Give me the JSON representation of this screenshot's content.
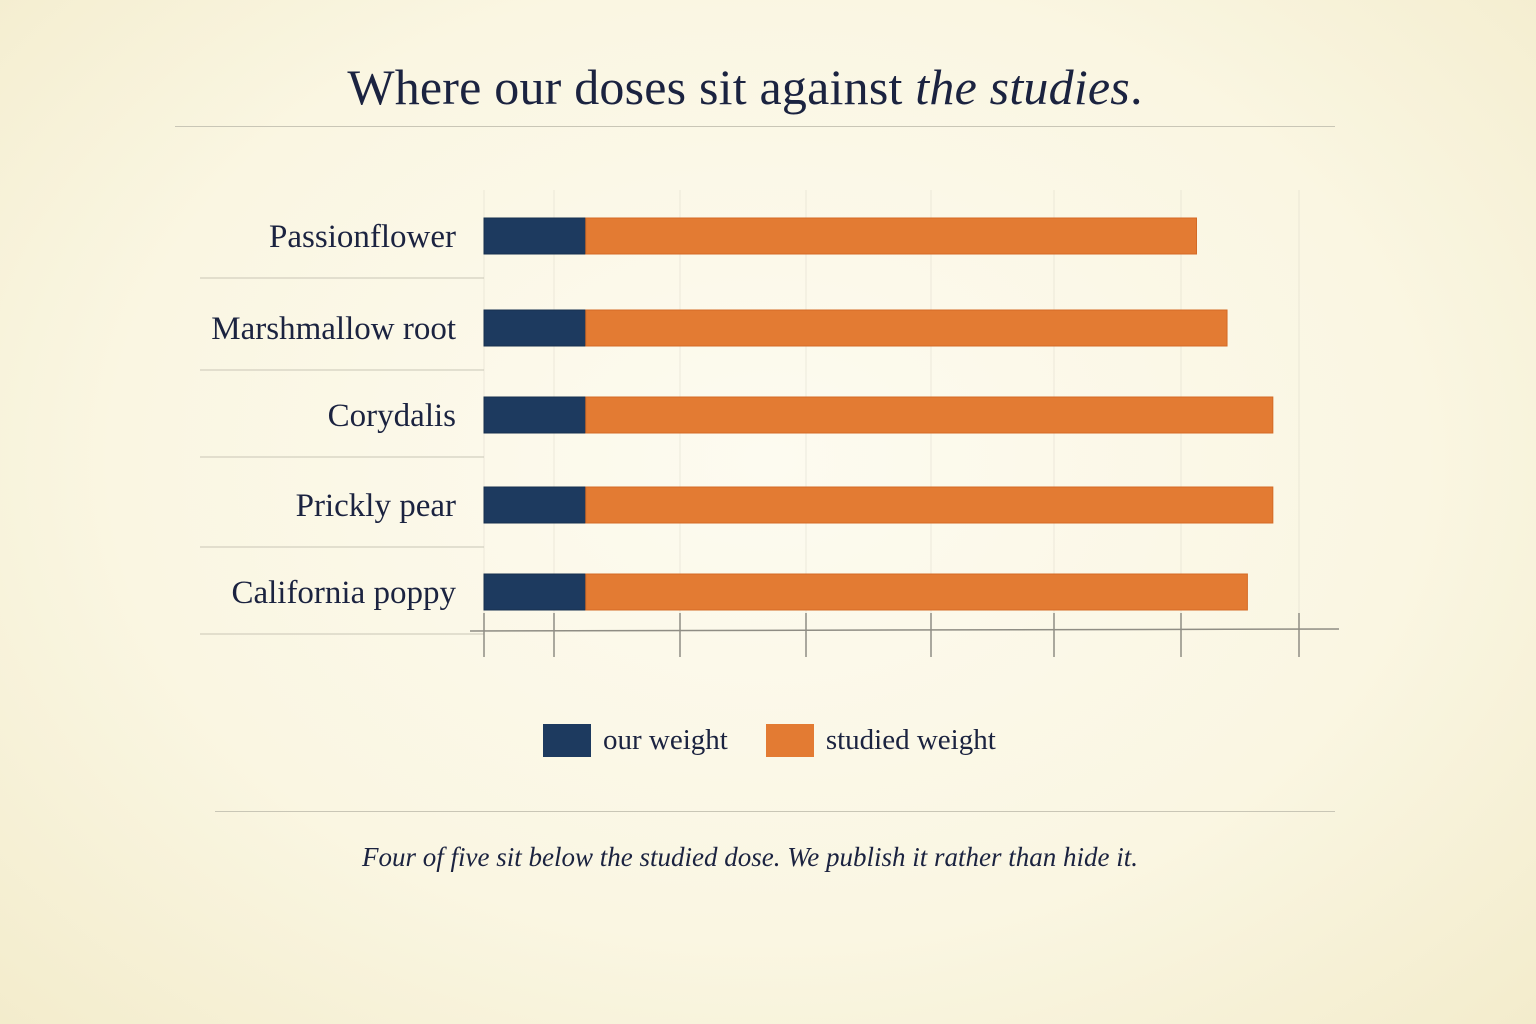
{
  "title": {
    "main": "Where our doses sit against ",
    "emph": "the studies",
    "end": "."
  },
  "caption": "Four of five sit below the studied dose. We publish it rather than hide it.",
  "colors": {
    "our": "#1d3a5f",
    "studied": "#e37b33",
    "ink": "#1b2340",
    "grid": "#cfcbbd"
  },
  "chart_data": {
    "type": "bar",
    "orientation": "horizontal",
    "stacked": true,
    "categories": [
      "Passionflower",
      "Marshmallow root",
      "Corydalis",
      "Prickly pear",
      "California poppy"
    ],
    "series": [
      {
        "name": "our weight",
        "color": "#1d3a5f",
        "values": [
          1,
          1,
          1,
          1,
          1
        ]
      },
      {
        "name": "studied weight",
        "color": "#e37b33",
        "values": [
          6.0,
          6.3,
          6.75,
          6.75,
          6.5
        ]
      }
    ],
    "xlim": [
      0,
      8.4
    ],
    "x_ticks_labeled": false,
    "legend": "bottom-center",
    "grid": true
  }
}
